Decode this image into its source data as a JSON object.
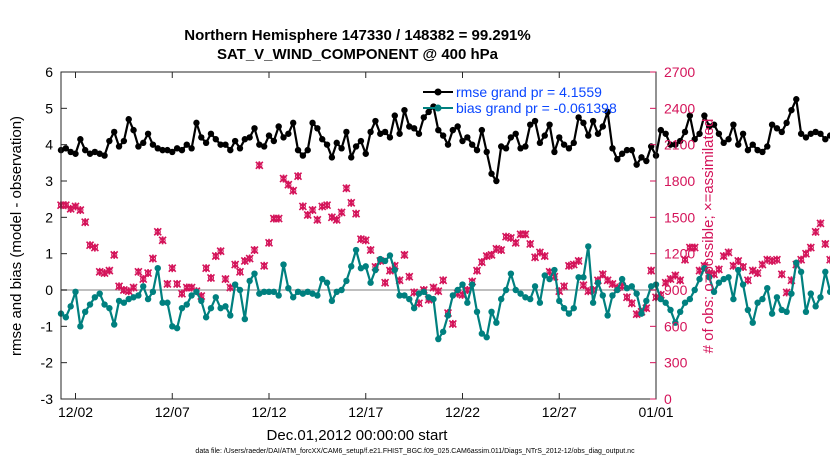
{
  "figure": {
    "title_line1": "Northern Hemisphere 147330 / 148382 = 99.291%",
    "title_line2": "SAT_V_WIND_COMPONENT @ 400 hPa",
    "footer": "data file: /Users/raeder/DAI/ATM_forcXX/CAM6_setup/f.e21.FHIST_BGC.f09_025.CAM6assim.011/Diags_NTrS_2012-12/obs_diag_output.nc"
  },
  "colors": {
    "rmse": "#000000",
    "bias": "#00807f",
    "obs": "#d4145a",
    "zero_line": "#bfbfbf",
    "legend_text": "#0a46ff"
  },
  "chart_data": {
    "type": "line",
    "xlabel": "Dec.01,2012 00:00:00 start",
    "ylabel_left": "rmse and bias (model - observation)",
    "ylabel_right": "# of obs: o=possible; ×=assimilated",
    "xlim_days": [
      0.25,
      31.0
    ],
    "ylim_left": [
      -3,
      6
    ],
    "ylim_right": [
      0,
      2700
    ],
    "x_ticks": [
      {
        "day": 1,
        "label": "12/02"
      },
      {
        "day": 6,
        "label": "12/07"
      },
      {
        "day": 11,
        "label": "12/12"
      },
      {
        "day": 16,
        "label": "12/17"
      },
      {
        "day": 21,
        "label": "12/22"
      },
      {
        "day": 26,
        "label": "12/27"
      },
      {
        "day": 31,
        "label": "01/01"
      }
    ],
    "y_ticks_left": [
      -3,
      -2,
      -1,
      0,
      1,
      2,
      3,
      4,
      5,
      6
    ],
    "y_ticks_right": [
      0,
      300,
      600,
      900,
      1200,
      1500,
      1800,
      2100,
      2400,
      2700
    ],
    "legend": [
      {
        "name": "rmse grand pr = 4.1559",
        "series": "rmse"
      },
      {
        "name": "bias grand pr = -0.061398",
        "series": "bias"
      }
    ],
    "x_start_day": 0.25,
    "x_step_day": 0.25,
    "series": [
      {
        "name": "rmse",
        "values": [
          3.85,
          3.9,
          3.8,
          3.75,
          4.15,
          3.85,
          3.75,
          3.8,
          3.75,
          3.7,
          4.1,
          4.35,
          3.95,
          4.1,
          4.7,
          4.4,
          3.95,
          4.05,
          4.3,
          4.0,
          3.9,
          3.85,
          3.85,
          3.8,
          3.9,
          3.85,
          4.0,
          3.9,
          4.6,
          4.2,
          4.05,
          4.3,
          4.15,
          4.0,
          4.0,
          3.85,
          4.1,
          3.9,
          4.15,
          4.2,
          4.45,
          4.0,
          3.95,
          4.25,
          4.1,
          4.5,
          4.2,
          4.3,
          4.6,
          3.85,
          3.7,
          3.85,
          4.6,
          4.45,
          4.15,
          4.0,
          3.65,
          4.05,
          3.9,
          4.35,
          3.65,
          3.95,
          4.1,
          3.75,
          4.35,
          4.65,
          4.3,
          4.35,
          4.2,
          4.8,
          4.3,
          4.95,
          4.5,
          4.45,
          4.3,
          4.75,
          4.9,
          5.05,
          4.4,
          4.25,
          4.0,
          4.4,
          4.5,
          4.1,
          4.2,
          4.0,
          3.85,
          4.4,
          3.8,
          3.2,
          3.0,
          3.95,
          3.9,
          4.2,
          4.3,
          3.9,
          3.95,
          4.55,
          4.65,
          4.05,
          4.25,
          4.55,
          3.8,
          4.2,
          4.0,
          3.9,
          4.05,
          4.75,
          4.6,
          4.25,
          4.65,
          4.3,
          4.5,
          4.9,
          3.9,
          3.6,
          3.75,
          3.85,
          3.85,
          3.45,
          3.65,
          3.55,
          3.95,
          3.7,
          4.4,
          4.3,
          4.0,
          4.0,
          4.1,
          4.35,
          4.8,
          4.15,
          4.3,
          4.8,
          4.5,
          4.55,
          4.3,
          4.05,
          4.15,
          4.55,
          4.0,
          4.3,
          3.85,
          4.0,
          3.85,
          3.8,
          3.95,
          4.55,
          4.45,
          4.35,
          4.6,
          4.95,
          5.25,
          4.3,
          4.2,
          4.3,
          4.35,
          4.3,
          4.15,
          4.25,
          4.25,
          4.4,
          4.15,
          4.05,
          4.0,
          3.95,
          4.4,
          4.3,
          3.85,
          4.05,
          4.2,
          4.2,
          4.05,
          3.7,
          4.15,
          4.2,
          4.6,
          4.45,
          4.5,
          5.0,
          4.2,
          4.45,
          5.15,
          5.05,
          4.9
        ]
      },
      {
        "name": "bias",
        "values": [
          -0.65,
          -0.75,
          -0.45,
          -0.05,
          -1.0,
          -0.6,
          -0.4,
          -0.2,
          -0.1,
          -0.4,
          -0.5,
          -0.95,
          -0.3,
          -0.35,
          -0.25,
          -0.2,
          -0.15,
          0.1,
          -0.25,
          -0.05,
          0.6,
          -0.35,
          -0.35,
          -1.0,
          -1.05,
          -0.5,
          -0.4,
          -0.15,
          -0.05,
          -0.3,
          -0.75,
          -0.5,
          -0.2,
          -0.5,
          -0.45,
          -0.7,
          0.15,
          0.0,
          -0.8,
          0.25,
          0.45,
          -0.1,
          -0.05,
          -0.05,
          -0.05,
          -0.15,
          0.7,
          0.05,
          -0.2,
          -0.05,
          -0.1,
          -0.05,
          -0.1,
          -0.15,
          0.3,
          0.2,
          -0.3,
          -0.05,
          0.0,
          0.25,
          0.65,
          1.1,
          0.6,
          0.65,
          0.2,
          0.55,
          0.85,
          0.8,
          0.95,
          0.55,
          -0.15,
          -0.15,
          -0.25,
          -0.5,
          -0.1,
          -0.05,
          -0.2,
          -0.25,
          -1.35,
          -1.15,
          -0.7,
          -0.15,
          0.0,
          0.15,
          -0.35,
          0.15,
          -0.6,
          -1.2,
          -1.3,
          -0.6,
          -0.9,
          -0.25,
          0.0,
          0.45,
          0.0,
          -0.1,
          -0.2,
          -0.25,
          0.1,
          -0.35,
          0.4,
          0.3,
          0.55,
          -0.3,
          -0.5,
          -0.65,
          -0.5,
          0.35,
          0.35,
          1.2,
          -0.35,
          0.2,
          -0.15,
          -0.7,
          -0.15,
          0.0,
          0.3,
          0.05,
          0.1,
          -0.1,
          -0.65,
          -0.3,
          0.1,
          0.15,
          -0.25,
          -0.35,
          -0.55,
          -0.9,
          -0.6,
          -0.35,
          -0.25,
          0.0,
          0.3,
          0.6,
          0.35,
          -0.05,
          0.2,
          0.3,
          0.35,
          -0.25,
          0.55,
          0.15,
          -0.55,
          -0.9,
          -0.35,
          -0.25,
          0.05,
          -0.65,
          -0.2,
          -0.55,
          -0.6,
          -0.1,
          0.75,
          0.5,
          -0.6,
          -0.1,
          -0.45,
          -0.2,
          0.5,
          -0.05,
          0.45,
          -0.05,
          -0.2,
          -0.5,
          -0.55,
          -0.3,
          -0.05,
          0.1,
          -0.15,
          -0.2,
          -0.1,
          -0.05,
          0.15,
          -0.1,
          -0.35,
          0.3,
          -0.3,
          0.15,
          0.55,
          1.2,
          0.6,
          0.95,
          1.55,
          0.5,
          0.0,
          -0.1,
          -0.15
        ]
      },
      {
        "name": "obs",
        "values": [
          1600,
          1600,
          1570,
          1590,
          1560,
          1460,
          1270,
          1250,
          1050,
          1040,
          1060,
          1190,
          930,
          900,
          890,
          920,
          1050,
          990,
          1040,
          1160,
          1380,
          1310,
          950,
          1080,
          950,
          870,
          920,
          920,
          890,
          850,
          1080,
          1000,
          1180,
          1220,
          990,
          920,
          1110,
          1050,
          1140,
          1160,
          1230,
          1930,
          1100,
          1290,
          1490,
          1490,
          1820,
          1770,
          1720,
          1840,
          1590,
          1520,
          1560,
          1480,
          1590,
          1600,
          1500,
          1480,
          1540,
          1740,
          1620,
          1530,
          1320,
          1310,
          1230,
          1090,
          1140,
          960,
          1060,
          1100,
          980,
          1190,
          1010,
          880,
          790,
          900,
          820,
          920,
          890,
          980,
          710,
          620,
          870,
          860,
          900,
          970,
          1060,
          1130,
          1180,
          1190,
          1240,
          1230,
          1340,
          1330,
          1290,
          1360,
          1360,
          1280,
          1170,
          1210,
          1180,
          1050,
          1010,
          890,
          930,
          1100,
          1110,
          1140,
          940,
          890,
          900,
          980,
          1030,
          980,
          950,
          920,
          930,
          840,
          790,
          700,
          720,
          750,
          1060,
          840,
          860,
          960,
          990,
          1020,
          980,
          1150,
          1250,
          1250,
          1060,
          1100,
          1040,
          1030,
          1070,
          1180,
          1210,
          1100,
          1140,
          1090,
          980,
          1060,
          1040,
          1110,
          1150,
          1140,
          1150,
          1030,
          880,
          980,
          1110,
          1150,
          1200,
          1250,
          1380,
          1450,
          1280,
          1150,
          1180,
          1120,
          1020,
          1000,
          900,
          970,
          1100,
          1080,
          1240,
          1500,
          1540,
          1470,
          1700,
          1650,
          1540,
          1340,
          1460,
          1230,
          1350,
          1090,
          1040,
          1150,
          1280,
          1480,
          1240,
          1120,
          800,
          790,
          820,
          830,
          0
        ]
      }
    ]
  }
}
